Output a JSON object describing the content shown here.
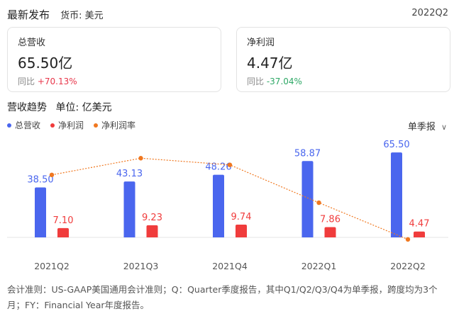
{
  "header": {
    "title": "最新发布",
    "currency": "货币: 美元",
    "period": "2022Q2"
  },
  "cards": [
    {
      "label": "总营收",
      "value": "65.50亿",
      "compare_label": "同比",
      "compare_value": "+70.13%",
      "trend": "up"
    },
    {
      "label": "净利润",
      "value": "4.47亿",
      "compare_label": "同比",
      "compare_value": "-37.04%",
      "trend": "down"
    }
  ],
  "section": {
    "title": "营收趋势",
    "unit": "单位: 亿美元",
    "period_selector": "单季报"
  },
  "colors": {
    "revenue": "#4a66ee",
    "profit": "#f03c3c",
    "margin": "#f07820",
    "up": "#e8364a",
    "down": "#2ea866"
  },
  "chart_data": {
    "type": "bar",
    "categories": [
      "2021Q2",
      "2021Q3",
      "2021Q4",
      "2022Q1",
      "2022Q2"
    ],
    "series": [
      {
        "name": "总营收",
        "type": "bar",
        "values": [
          38.5,
          43.13,
          48.26,
          58.87,
          65.5
        ],
        "labels": [
          "38.50",
          "43.13",
          "48.26",
          "58.87",
          "65.50"
        ]
      },
      {
        "name": "净利润",
        "type": "bar",
        "values": [
          7.1,
          9.23,
          9.74,
          7.86,
          4.47
        ],
        "labels": [
          "7.10",
          "9.23",
          "9.74",
          "7.86",
          "4.47"
        ]
      },
      {
        "name": "净利润率",
        "type": "line",
        "values": [
          18.4,
          21.4,
          20.2,
          13.4,
          6.8
        ]
      }
    ],
    "legend": "top-left"
  },
  "footnote": "会计准则：US-GAAP美国通用会计准则；Q：Quarter季度报告，其中Q1/Q2/Q3/Q4为单季报，跨度均为3个月；FY：Financial Year年度报告。"
}
